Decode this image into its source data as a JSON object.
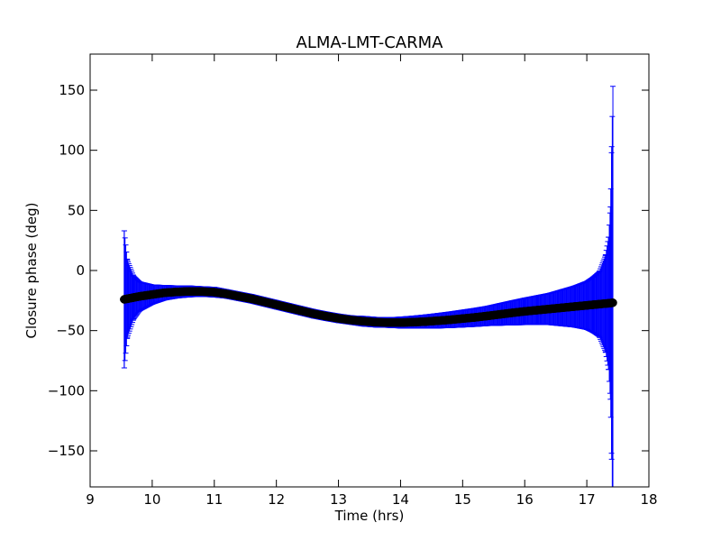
{
  "chart_data": {
    "type": "scatter",
    "title": "ALMA-LMT-CARMA",
    "xlabel": "Time (hrs)",
    "ylabel": "Closure phase (deg)",
    "xlim": [
      9,
      18
    ],
    "ylim": [
      -180,
      180
    ],
    "xticks": [
      9,
      10,
      11,
      12,
      13,
      14,
      15,
      16,
      17,
      18
    ],
    "yticks": [
      -150,
      -100,
      -50,
      0,
      50,
      100,
      150
    ],
    "grid": false,
    "colors": {
      "points": "#000000",
      "errorbars": "#0000ff"
    },
    "series": [
      {
        "x": [
          9.55,
          9.6,
          9.7,
          9.8,
          10.0,
          10.2,
          10.4,
          10.6,
          10.8,
          11.0,
          11.2,
          11.4,
          11.6,
          11.8,
          12.0,
          12.2,
          12.4,
          12.6,
          12.8,
          13.0,
          13.2,
          13.4,
          13.6,
          13.8,
          14.0,
          14.2,
          14.4,
          14.6,
          14.8,
          15.0,
          15.2,
          15.4,
          15.6,
          15.8,
          16.0,
          16.2,
          16.4,
          16.6,
          16.8,
          17.0,
          17.1,
          17.2,
          17.3,
          17.35,
          17.38,
          17.4,
          17.42
        ],
        "y": [
          -24,
          -23.5,
          -22.5,
          -21.5,
          -20,
          -18.5,
          -17.8,
          -17.4,
          -17.5,
          -18,
          -19.5,
          -21.5,
          -23.5,
          -26,
          -28.5,
          -31,
          -33.5,
          -36,
          -38,
          -39.8,
          -41.2,
          -42.2,
          -43,
          -43.3,
          -43.3,
          -43,
          -42.5,
          -41.8,
          -41,
          -40,
          -39,
          -37.8,
          -36.5,
          -35.2,
          -34,
          -33,
          -32,
          -31,
          -30,
          -29,
          -28.5,
          -28,
          -27.5,
          -27.3,
          -27.1,
          -27,
          -26.8
        ],
        "err": [
          57,
          32,
          18,
          12,
          8,
          6,
          5,
          4.5,
          4,
          4,
          3.5,
          3.5,
          3.5,
          3.5,
          3.5,
          3.5,
          3.5,
          3.5,
          3.5,
          3.5,
          3.5,
          4,
          4,
          4,
          4.5,
          5,
          5.5,
          6,
          6.5,
          7,
          7.5,
          8,
          9,
          10,
          11,
          12,
          13,
          15,
          17,
          20,
          23,
          27,
          40,
          55,
          80,
          130,
          180
        ]
      }
    ]
  }
}
